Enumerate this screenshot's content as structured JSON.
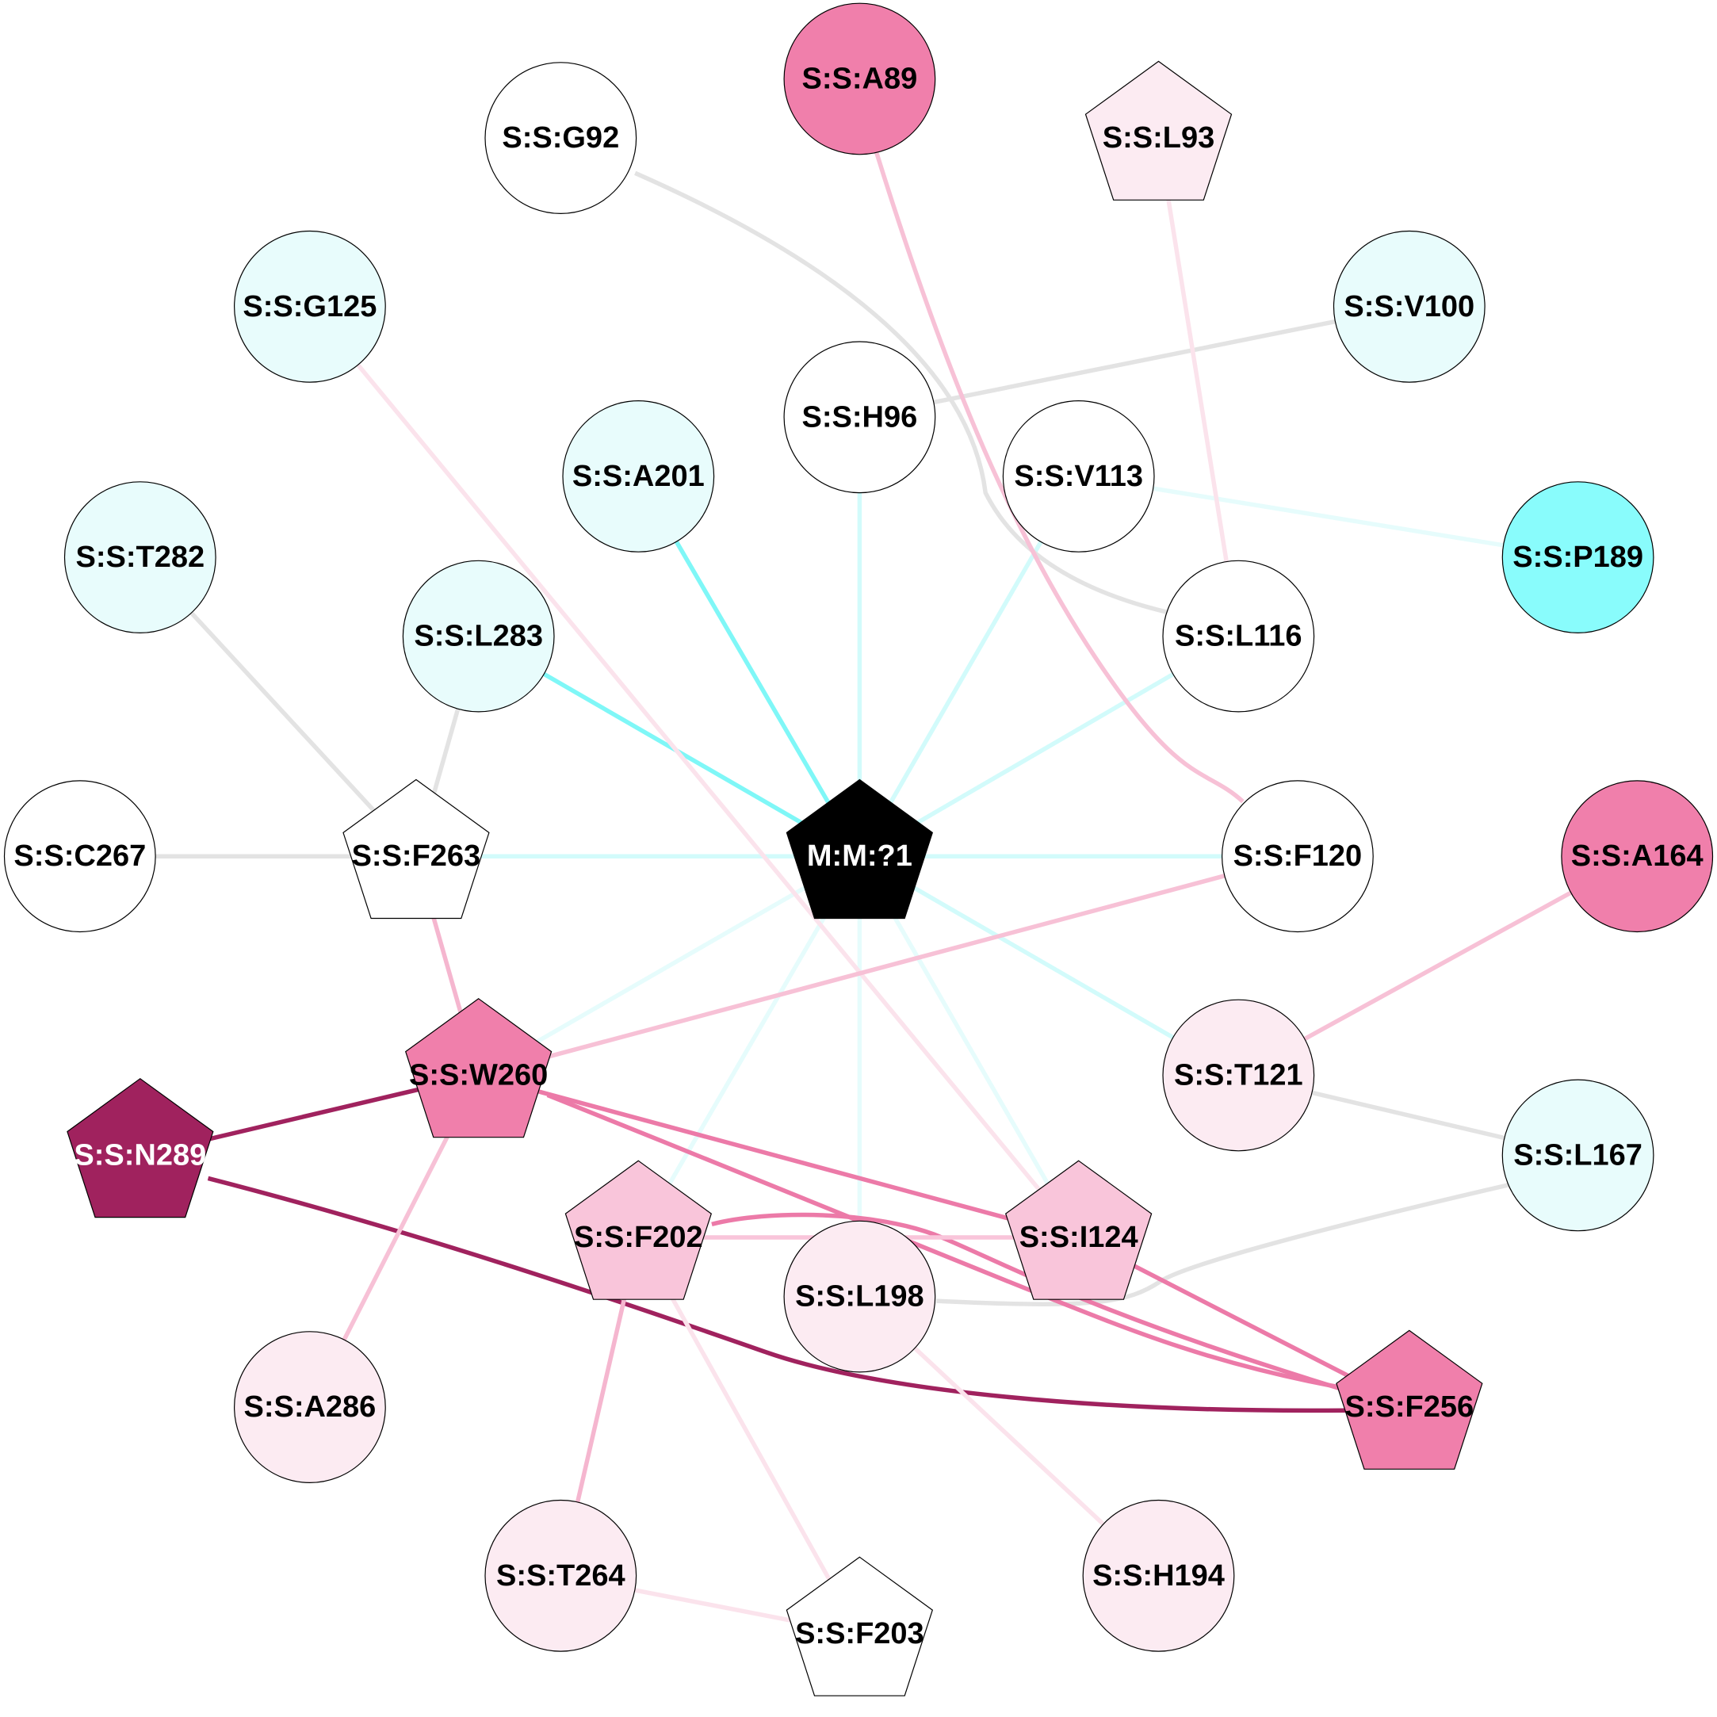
{
  "graph": {
    "nodes": [
      {
        "id": "M:M:?1",
        "label": "M:M:?1",
        "shape": "pentagon",
        "fill": "#000000",
        "text": "#ffffff"
      },
      {
        "id": "S:S:A89",
        "label": "S:S:A89",
        "shape": "circle",
        "fill": "#f07fab",
        "text": "#000000"
      },
      {
        "id": "S:S:G92",
        "label": "S:S:G92",
        "shape": "circle",
        "fill": "#ffffff",
        "text": "#000000"
      },
      {
        "id": "S:S:L93",
        "label": "S:S:L93",
        "shape": "pentagon",
        "fill": "#fcebf2",
        "text": "#000000"
      },
      {
        "id": "S:S:G125",
        "label": "S:S:G125",
        "shape": "circle",
        "fill": "#e8fcfc",
        "text": "#000000"
      },
      {
        "id": "S:S:V100",
        "label": "S:S:V100",
        "shape": "circle",
        "fill": "#e8fcfc",
        "text": "#000000"
      },
      {
        "id": "S:S:H96",
        "label": "S:S:H96",
        "shape": "circle",
        "fill": "#ffffff",
        "text": "#000000"
      },
      {
        "id": "S:S:A201",
        "label": "S:S:A201",
        "shape": "circle",
        "fill": "#e8fcfc",
        "text": "#000000"
      },
      {
        "id": "S:S:V113",
        "label": "S:S:V113",
        "shape": "circle",
        "fill": "#ffffff",
        "text": "#000000"
      },
      {
        "id": "S:S:T282",
        "label": "S:S:T282",
        "shape": "circle",
        "fill": "#e8fcfc",
        "text": "#000000"
      },
      {
        "id": "S:S:P189",
        "label": "S:S:P189",
        "shape": "circle",
        "fill": "#89fcfc",
        "text": "#000000"
      },
      {
        "id": "S:S:L283",
        "label": "S:S:L283",
        "shape": "circle",
        "fill": "#e8fcfc",
        "text": "#000000"
      },
      {
        "id": "S:S:L116",
        "label": "S:S:L116",
        "shape": "circle",
        "fill": "#ffffff",
        "text": "#000000"
      },
      {
        "id": "S:S:C267",
        "label": "S:S:C267",
        "shape": "circle",
        "fill": "#ffffff",
        "text": "#000000"
      },
      {
        "id": "S:S:F263",
        "label": "S:S:F263",
        "shape": "pentagon",
        "fill": "#ffffff",
        "text": "#000000"
      },
      {
        "id": "S:S:F120",
        "label": "S:S:F120",
        "shape": "circle",
        "fill": "#ffffff",
        "text": "#000000"
      },
      {
        "id": "S:S:A164",
        "label": "S:S:A164",
        "shape": "circle",
        "fill": "#f07fab",
        "text": "#000000"
      },
      {
        "id": "S:S:W260",
        "label": "S:S:W260",
        "shape": "pentagon",
        "fill": "#f07fab",
        "text": "#000000"
      },
      {
        "id": "S:S:T121",
        "label": "S:S:T121",
        "shape": "circle",
        "fill": "#fcebf2",
        "text": "#000000"
      },
      {
        "id": "S:S:N289",
        "label": "S:S:N289",
        "shape": "pentagon",
        "fill": "#a0225e",
        "text": "#ffffff"
      },
      {
        "id": "S:S:L167",
        "label": "S:S:L167",
        "shape": "circle",
        "fill": "#e8fcfc",
        "text": "#000000"
      },
      {
        "id": "S:S:F202",
        "label": "S:S:F202",
        "shape": "pentagon",
        "fill": "#f9c5da",
        "text": "#000000"
      },
      {
        "id": "S:S:I124",
        "label": "S:S:I124",
        "shape": "pentagon",
        "fill": "#f9c5da",
        "text": "#000000"
      },
      {
        "id": "S:S:L198",
        "label": "S:S:L198",
        "shape": "circle",
        "fill": "#fcebf2",
        "text": "#000000"
      },
      {
        "id": "S:S:A286",
        "label": "S:S:A286",
        "shape": "circle",
        "fill": "#fcebf2",
        "text": "#000000"
      },
      {
        "id": "S:S:F256",
        "label": "S:S:F256",
        "shape": "pentagon",
        "fill": "#f07fab",
        "text": "#000000"
      },
      {
        "id": "S:S:T264",
        "label": "S:S:T264",
        "shape": "circle",
        "fill": "#fcebf2",
        "text": "#000000"
      },
      {
        "id": "S:S:F203",
        "label": "S:S:F203",
        "shape": "pentagon",
        "fill": "#ffffff",
        "text": "#000000"
      },
      {
        "id": "S:S:H194",
        "label": "S:S:H194",
        "shape": "circle",
        "fill": "#fcebf2",
        "text": "#000000"
      }
    ],
    "edges": [
      {
        "from": "M:M:?1",
        "to": "S:S:A201",
        "color": "#7ff7f7"
      },
      {
        "from": "M:M:?1",
        "to": "S:S:L283",
        "color": "#7ff7f7"
      },
      {
        "from": "M:M:?1",
        "to": "S:S:H96",
        "color": "#d2fbfb"
      },
      {
        "from": "M:M:?1",
        "to": "S:S:V113",
        "color": "#d2fbfb"
      },
      {
        "from": "M:M:?1",
        "to": "S:S:L116",
        "color": "#d2fbfb"
      },
      {
        "from": "M:M:?1",
        "to": "S:S:F120",
        "color": "#d2fbfb"
      },
      {
        "from": "M:M:?1",
        "to": "S:S:F263",
        "color": "#d2fbfb"
      },
      {
        "from": "M:M:?1",
        "to": "S:S:T121",
        "color": "#d2fbfb"
      },
      {
        "from": "M:M:?1",
        "to": "S:S:W260",
        "color": "#e6fcfc"
      },
      {
        "from": "M:M:?1",
        "to": "S:S:F202",
        "color": "#e6fcfc"
      },
      {
        "from": "M:M:?1",
        "to": "S:S:L198",
        "color": "#e6fcfc"
      },
      {
        "from": "M:M:?1",
        "to": "S:S:I124",
        "color": "#e6fcfc"
      },
      {
        "from": "S:S:V113",
        "to": "S:S:P189",
        "color": "#e6fcfc"
      },
      {
        "from": "S:S:G92",
        "to": "S:S:L116",
        "color": "#e3e3e3",
        "curve": "g92"
      },
      {
        "from": "S:S:H96",
        "to": "S:S:V100",
        "color": "#e3e3e3"
      },
      {
        "from": "S:S:L93",
        "to": "S:S:L116",
        "color": "#fbe3ec"
      },
      {
        "from": "S:S:A89",
        "to": "S:S:F120",
        "color": "#f7c1d6",
        "curve": "a89"
      },
      {
        "from": "S:S:G125",
        "to": "S:S:I124",
        "color": "#fbe3ec"
      },
      {
        "from": "S:S:T282",
        "to": "S:S:F263",
        "color": "#e3e3e3"
      },
      {
        "from": "S:S:L283",
        "to": "S:S:F263",
        "color": "#e3e3e3"
      },
      {
        "from": "S:S:C267",
        "to": "S:S:F263",
        "color": "#e3e3e3"
      },
      {
        "from": "S:S:F263",
        "to": "S:S:W260",
        "color": "#f5b6cf"
      },
      {
        "from": "S:S:F120",
        "to": "S:S:W260",
        "color": "#f7c1d6"
      },
      {
        "from": "S:S:A164",
        "to": "S:S:T121",
        "color": "#f7c1d6"
      },
      {
        "from": "S:S:T121",
        "to": "S:S:L167",
        "color": "#e3e3e3"
      },
      {
        "from": "S:S:L198",
        "to": "S:S:L167",
        "color": "#e3e3e3",
        "curve": "l198"
      },
      {
        "from": "S:S:W260",
        "to": "S:S:N289",
        "color": "#a0225e"
      },
      {
        "from": "S:S:N289",
        "to": "S:S:F256",
        "color": "#a0225e",
        "curve": "n289"
      },
      {
        "from": "S:S:W260",
        "to": "S:S:I124",
        "color": "#ec7aa8"
      },
      {
        "from": "S:S:W260",
        "to": "S:S:F256",
        "color": "#ec7aa8",
        "curve": "w260"
      },
      {
        "from": "S:S:I124",
        "to": "S:S:F256",
        "color": "#ec7aa8"
      },
      {
        "from": "S:S:F202",
        "to": "S:S:F256",
        "color": "#ec7aa8",
        "curve": "f202"
      },
      {
        "from": "S:S:F202",
        "to": "S:S:I124",
        "color": "#f9c5da"
      },
      {
        "from": "S:S:W260",
        "to": "S:S:A286",
        "color": "#f7c1d6"
      },
      {
        "from": "S:S:F202",
        "to": "S:S:T264",
        "color": "#f5b6cf"
      },
      {
        "from": "S:S:F202",
        "to": "S:S:F203",
        "color": "#fbe3ec"
      },
      {
        "from": "S:S:T264",
        "to": "S:S:F203",
        "color": "#fbe3ec"
      },
      {
        "from": "S:S:L198",
        "to": "S:S:H194",
        "color": "#fbe3ec"
      }
    ]
  }
}
